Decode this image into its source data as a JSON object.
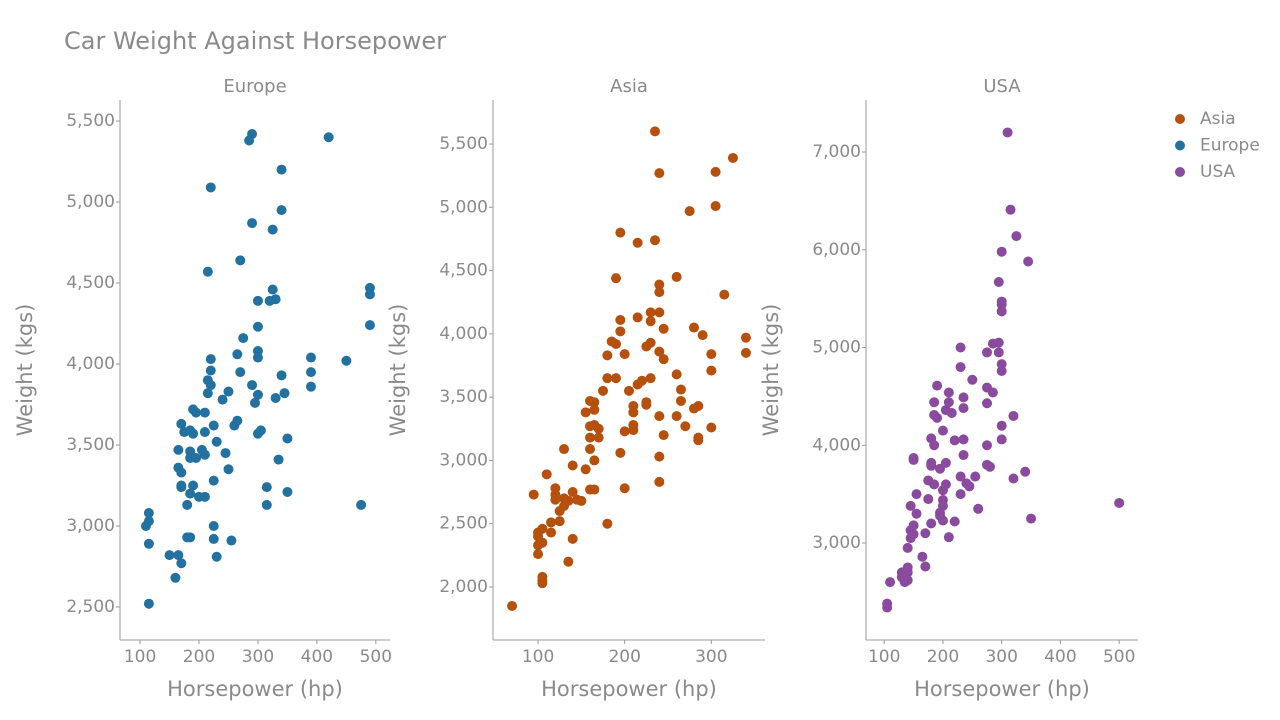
{
  "title": "Car Weight Against Horsepower",
  "chart_data": [
    {
      "type": "scatter",
      "title": "Europe",
      "xlabel": "Horsepower (hp)",
      "ylabel": "Weight (kgs)",
      "xlim": [
        66,
        524
      ],
      "ylim": [
        2296,
        5630
      ],
      "xticks": [
        100,
        200,
        300,
        400,
        500
      ],
      "yticks": [
        {
          "value": 2500,
          "label": "2,500"
        },
        {
          "value": 3000,
          "label": "3,000"
        },
        {
          "value": 3500,
          "label": "3,500"
        },
        {
          "value": 4000,
          "label": "4,000"
        },
        {
          "value": 4500,
          "label": "4,500"
        },
        {
          "value": 5000,
          "label": "5,000"
        },
        {
          "value": 5500,
          "label": "5,500"
        }
      ],
      "series": [
        {
          "name": "Europe",
          "color": "#23719f",
          "x": [
            110,
            115,
            115,
            115,
            115,
            150,
            160,
            165,
            170,
            165,
            170,
            170,
            170,
            165,
            170,
            175,
            180,
            180,
            185,
            185,
            190,
            185,
            185,
            185,
            190,
            195,
            190,
            195,
            200,
            210,
            205,
            210,
            210,
            210,
            215,
            215,
            215,
            220,
            220,
            220,
            220,
            225,
            225,
            225,
            225,
            230,
            230,
            240,
            245,
            250,
            250,
            255,
            260,
            265,
            265,
            270,
            270,
            275,
            285,
            290,
            290,
            290,
            295,
            300,
            300,
            300,
            300,
            300,
            300,
            305,
            315,
            315,
            320,
            325,
            325,
            330,
            330,
            335,
            340,
            340,
            340,
            345,
            350,
            350,
            390,
            390,
            390,
            420,
            450,
            475,
            490,
            490,
            490
          ],
          "values": [
            3000,
            3080,
            3030,
            2890,
            2520,
            2820,
            2680,
            2820,
            2770,
            3360,
            3330,
            3250,
            3240,
            3470,
            3630,
            3580,
            3130,
            2930,
            2930,
            3200,
            3250,
            3460,
            3420,
            3590,
            3570,
            3420,
            3720,
            3700,
            3180,
            3180,
            3470,
            3580,
            3440,
            3700,
            3820,
            3900,
            4570,
            5090,
            3960,
            4030,
            3870,
            3620,
            3280,
            3000,
            2920,
            2810,
            3520,
            3780,
            3450,
            3350,
            3830,
            2910,
            3620,
            3650,
            4060,
            4640,
            3950,
            4160,
            5380,
            5420,
            4870,
            3870,
            3760,
            3810,
            4040,
            4080,
            4230,
            4390,
            3570,
            3590,
            3130,
            3240,
            4390,
            4830,
            4460,
            4400,
            3790,
            3410,
            5200,
            4950,
            3930,
            3820,
            3540,
            3210,
            4040,
            3950,
            3860,
            5400,
            4020,
            3130,
            4470,
            4430,
            4240
          ]
        }
      ]
    },
    {
      "type": "scatter",
      "title": "Asia",
      "xlabel": "Horsepower (hp)",
      "ylabel": "Weight (kgs)",
      "xlim": [
        48,
        362
      ],
      "ylim": [
        1581,
        5848
      ],
      "xticks": [
        100,
        200,
        300
      ],
      "yticks": [
        {
          "value": 2000,
          "label": "2,000"
        },
        {
          "value": 2500,
          "label": "2,500"
        },
        {
          "value": 3000,
          "label": "3,000"
        },
        {
          "value": 3500,
          "label": "3,500"
        },
        {
          "value": 4000,
          "label": "4,000"
        },
        {
          "value": 4500,
          "label": "4,500"
        },
        {
          "value": 5000,
          "label": "5,000"
        },
        {
          "value": 5500,
          "label": "5,500"
        }
      ],
      "series": [
        {
          "name": "Asia",
          "color": "#b6500d",
          "x": [
            70,
            95,
            100,
            100,
            100,
            100,
            105,
            105,
            105,
            105,
            105,
            110,
            115,
            115,
            120,
            120,
            120,
            125,
            125,
            130,
            130,
            130,
            135,
            135,
            140,
            140,
            140,
            145,
            150,
            155,
            155,
            160,
            160,
            160,
            160,
            160,
            165,
            165,
            165,
            165,
            165,
            170,
            170,
            175,
            180,
            180,
            180,
            185,
            190,
            190,
            190,
            195,
            195,
            195,
            195,
            200,
            200,
            200,
            205,
            210,
            210,
            210,
            210,
            215,
            215,
            215,
            220,
            225,
            225,
            225,
            230,
            230,
            230,
            230,
            235,
            235,
            240,
            240,
            240,
            240,
            240,
            240,
            240,
            240,
            245,
            245,
            245,
            260,
            260,
            265,
            265,
            270,
            275,
            280,
            280,
            285,
            285,
            290,
            300,
            300,
            300,
            305,
            305,
            315,
            325,
            340,
            340,
            260,
            285
          ],
          "values": [
            1850,
            2730,
            2430,
            2400,
            2330,
            2260,
            2460,
            2350,
            2080,
            2050,
            2030,
            2890,
            2510,
            2430,
            2780,
            2730,
            2690,
            2600,
            2520,
            2640,
            2700,
            3090,
            2680,
            2200,
            2380,
            2750,
            2960,
            2690,
            2680,
            3380,
            2930,
            3180,
            3090,
            3270,
            3470,
            2770,
            3460,
            3400,
            3280,
            3000,
            2770,
            3250,
            3180,
            3550,
            2500,
            3830,
            3650,
            3940,
            4440,
            3920,
            3650,
            4110,
            4020,
            4800,
            3060,
            2780,
            3230,
            3840,
            3550,
            3430,
            3380,
            3280,
            3240,
            4720,
            4130,
            3600,
            3630,
            3440,
            3460,
            3900,
            4100,
            4170,
            3930,
            3650,
            5600,
            4740,
            5270,
            4390,
            4330,
            4170,
            3860,
            3350,
            3030,
            2830,
            4040,
            3800,
            3200,
            4450,
            3680,
            3560,
            3470,
            3270,
            4970,
            3410,
            4050,
            3430,
            3180,
            3990,
            3840,
            3710,
            3260,
            5280,
            5010,
            4310,
            5390,
            3970,
            3850,
            3350,
            3160
          ]
        }
      ]
    },
    {
      "type": "scatter",
      "title": "USA",
      "xlabel": "Horsepower (hp)",
      "ylabel": "Weight (kgs)",
      "xlim": [
        69,
        532
      ],
      "ylim": [
        2008,
        7532
      ],
      "xticks": [
        100,
        200,
        300,
        400,
        500
      ],
      "yticks": [
        {
          "value": 3000,
          "label": "3,000"
        },
        {
          "value": 4000,
          "label": "4,000"
        },
        {
          "value": 5000,
          "label": "5,000"
        },
        {
          "value": 6000,
          "label": "6,000"
        },
        {
          "value": 7000,
          "label": "7,000"
        }
      ],
      "series": [
        {
          "name": "USA",
          "color": "#8a4a9d",
          "x": [
            105,
            105,
            110,
            130,
            130,
            135,
            140,
            140,
            140,
            140,
            145,
            145,
            145,
            150,
            150,
            150,
            150,
            155,
            155,
            165,
            170,
            170,
            175,
            175,
            180,
            180,
            180,
            180,
            185,
            185,
            185,
            185,
            190,
            190,
            195,
            195,
            195,
            200,
            200,
            200,
            200,
            200,
            205,
            205,
            205,
            210,
            210,
            210,
            215,
            220,
            220,
            230,
            230,
            230,
            230,
            235,
            235,
            235,
            235,
            240,
            245,
            250,
            255,
            260,
            275,
            275,
            275,
            275,
            275,
            280,
            285,
            285,
            295,
            295,
            295,
            300,
            300,
            300,
            300,
            300,
            300,
            300,
            300,
            310,
            315,
            320,
            320,
            325,
            340,
            345,
            350,
            500
          ],
          "values": [
            2380,
            2340,
            2600,
            2700,
            2650,
            2600,
            2620,
            2700,
            2750,
            2950,
            3050,
            3130,
            3380,
            3180,
            3090,
            3850,
            3870,
            3500,
            3300,
            2860,
            2760,
            3100,
            3450,
            3640,
            4070,
            3820,
            3790,
            3200,
            4440,
            4310,
            3600,
            4000,
            4610,
            4280,
            3760,
            3310,
            3280,
            4150,
            3540,
            3440,
            3230,
            3380,
            4360,
            3820,
            3600,
            4440,
            4540,
            3060,
            4330,
            3220,
            4050,
            5000,
            4800,
            3500,
            3680,
            4490,
            4380,
            3900,
            4060,
            3610,
            3580,
            4670,
            3680,
            3350,
            4950,
            4430,
            4590,
            4000,
            3800,
            3780,
            5040,
            4540,
            5050,
            4950,
            5670,
            5980,
            5470,
            5440,
            5370,
            4830,
            4760,
            4060,
            4200,
            7200,
            6410,
            4300,
            3660,
            6140,
            3730,
            5880,
            3250,
            3410
          ]
        }
      ]
    }
  ]
}
